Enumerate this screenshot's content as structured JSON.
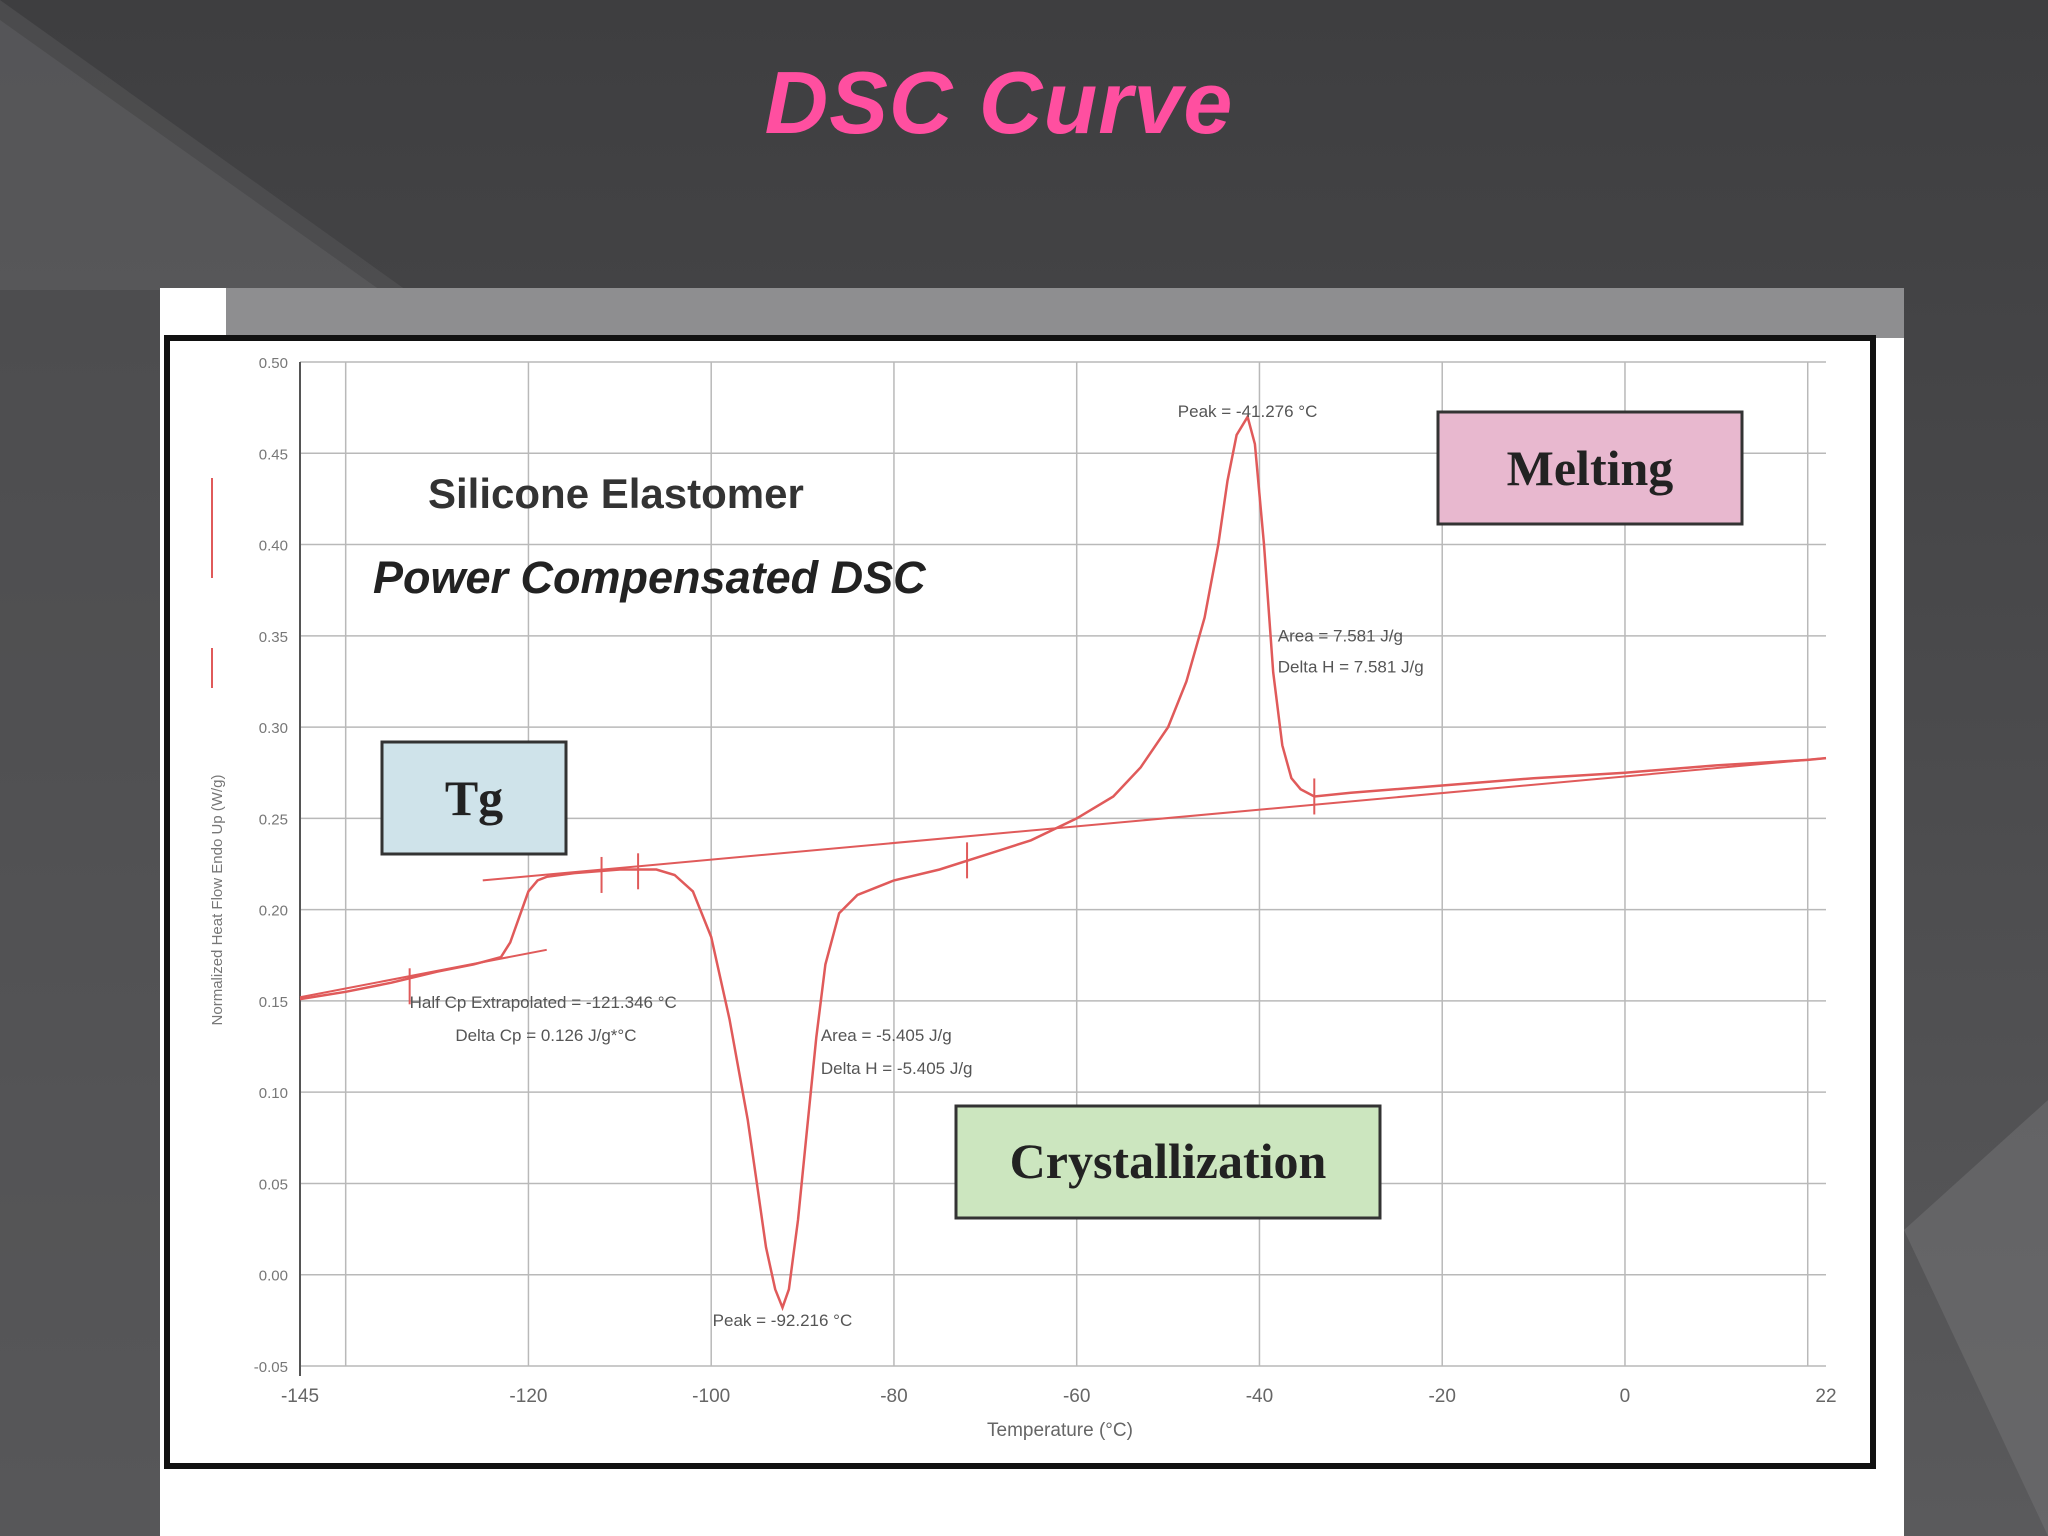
{
  "slide": {
    "title": "DSC Curve"
  },
  "colors": {
    "title": "#ff4fa0",
    "curve": "#e05a5a",
    "grid": "#b9b9b9",
    "tg_box": "#cfe3ea",
    "melt_box": "#e8b8cf",
    "cryst_box": "#cce6bf"
  },
  "chart_data": {
    "type": "line",
    "title": "Silicone Elastomer",
    "subtitle": "Power Compensated DSC",
    "xlabel": "Temperature (°C)",
    "ylabel": "Normalized Heat Flow Endo Up (W/g)",
    "xlim": [
      -145,
      22
    ],
    "ylim": [
      -0.05,
      0.5
    ],
    "x_ticks": [
      -145,
      -120,
      -100,
      -80,
      -60,
      -40,
      -20,
      0,
      22
    ],
    "x_tick_labels": [
      "-145",
      "-120",
      "-100",
      "-80",
      "-60",
      "-40",
      "-20",
      "0",
      "22"
    ],
    "y_ticks": [
      -0.05,
      0.0,
      0.05,
      0.1,
      0.15,
      0.2,
      0.25,
      0.3,
      0.35,
      0.4,
      0.45,
      0.5
    ],
    "y_tick_labels": [
      "-0.05",
      "0.00",
      "0.05",
      "0.10",
      "0.15",
      "0.20",
      "0.25",
      "0.30",
      "0.35",
      "0.40",
      "0.45",
      "0.50"
    ],
    "grid": true,
    "series": [
      {
        "x": [
          -145,
          -140,
          -135,
          -130,
          -126,
          -123,
          -122,
          -121,
          -120,
          -119,
          -118,
          -115,
          -110,
          -106,
          -104,
          -102,
          -100,
          -98,
          -96,
          -95,
          -94,
          -93,
          -92.2,
          -91.5,
          -90.5,
          -89.5,
          -88.5,
          -87.5,
          -86,
          -84,
          -82,
          -80,
          -75,
          -70,
          -65,
          -60,
          -56,
          -53,
          -50,
          -48,
          -46,
          -44.5,
          -43.5,
          -42.5,
          -41.3,
          -40.5,
          -39.5,
          -38.5,
          -37.5,
          -36.5,
          -35.5,
          -34,
          -30,
          -20,
          -10,
          0,
          10,
          20,
          22
        ],
        "y": [
          0.151,
          0.155,
          0.16,
          0.166,
          0.17,
          0.174,
          0.182,
          0.196,
          0.21,
          0.216,
          0.218,
          0.22,
          0.222,
          0.222,
          0.219,
          0.21,
          0.185,
          0.14,
          0.085,
          0.05,
          0.015,
          -0.008,
          -0.018,
          -0.008,
          0.03,
          0.08,
          0.13,
          0.17,
          0.198,
          0.208,
          0.212,
          0.216,
          0.222,
          0.23,
          0.238,
          0.25,
          0.262,
          0.278,
          0.3,
          0.325,
          0.36,
          0.4,
          0.435,
          0.46,
          0.47,
          0.455,
          0.4,
          0.33,
          0.29,
          0.272,
          0.266,
          0.262,
          0.264,
          0.268,
          0.272,
          0.275,
          0.279,
          0.282,
          0.283
        ]
      }
    ],
    "baselines": [
      {
        "x": [
          -145,
          -118
        ],
        "y": [
          0.152,
          0.178
        ]
      },
      {
        "x": [
          -125,
          22
        ],
        "y": [
          0.216,
          0.283
        ]
      }
    ],
    "annotations": [
      {
        "text": "Peak = -41.276 °C",
        "x": -41.3,
        "y": 0.47
      },
      {
        "text": "Area = 7.581 J/g",
        "x": -38,
        "y": 0.347
      },
      {
        "text": "Delta H = 7.581 J/g",
        "x": -38,
        "y": 0.33
      },
      {
        "text": "Half Cp Extrapolated = -121.346 °C",
        "x": -133,
        "y": 0.146
      },
      {
        "text": "Delta Cp = 0.126 J/g*°C",
        "x": -128,
        "y": 0.128
      },
      {
        "text": "Area = -5.405 J/g",
        "x": -88,
        "y": 0.128
      },
      {
        "text": "Delta H = -5.405 J/g",
        "x": -88,
        "y": 0.11
      },
      {
        "text": "Peak = -92.216 °C",
        "x": -92.2,
        "y": -0.028
      }
    ],
    "labels": {
      "tg": "Tg",
      "melting": "Melting",
      "crystallization": "Crystallization"
    }
  }
}
